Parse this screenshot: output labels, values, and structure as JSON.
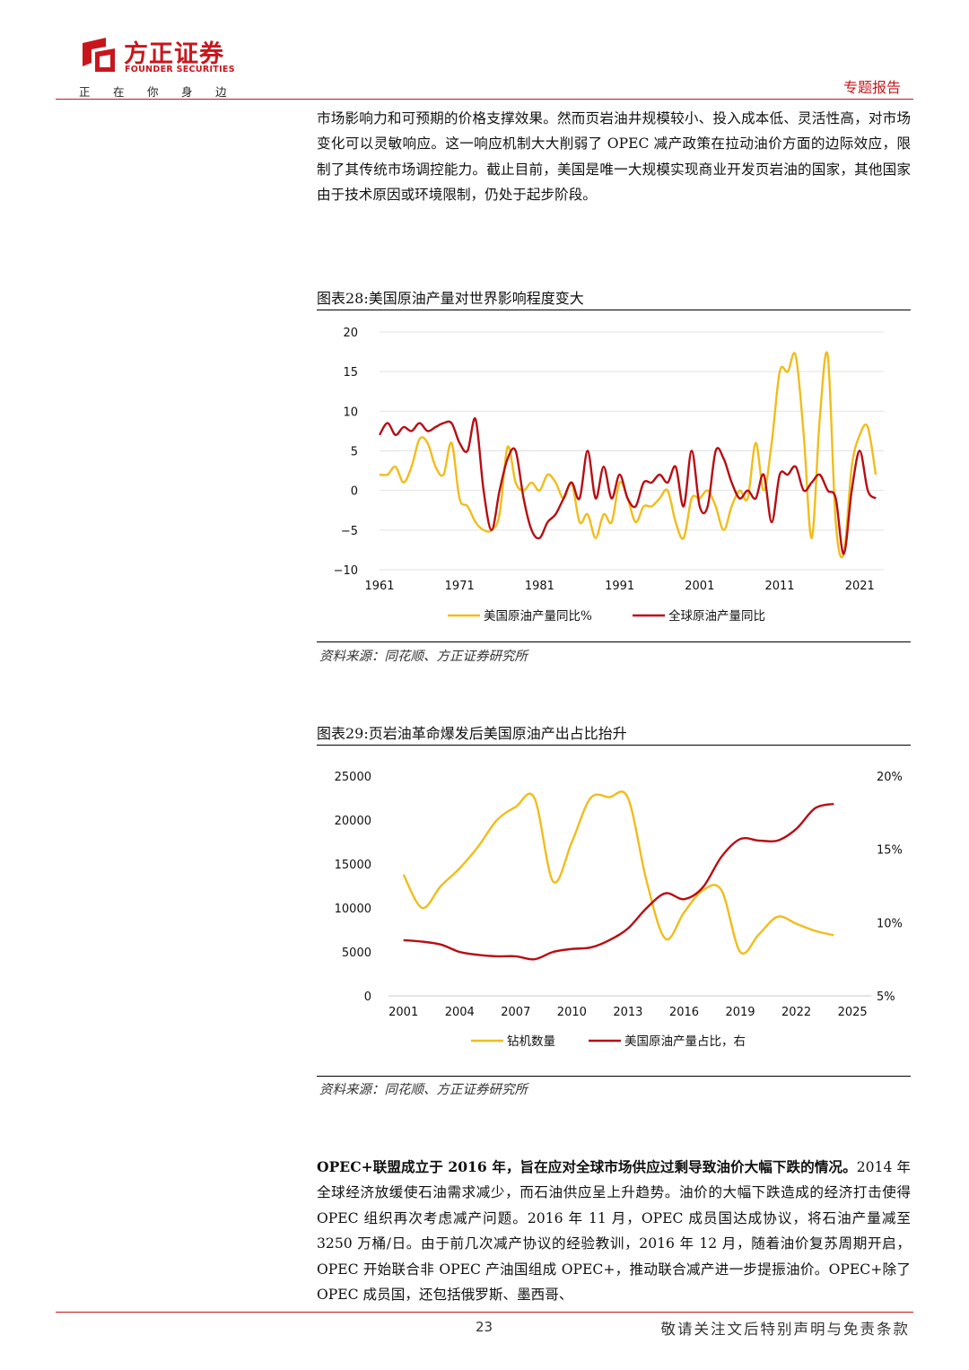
{
  "header": {
    "brand_cn": "方正证券",
    "brand_en": "FOUNDER SECURITIES",
    "slogan": [
      "正",
      "在",
      "你",
      "身",
      "边"
    ],
    "report_type": "专题报告",
    "accent_color": "#c8161d"
  },
  "intro_paragraph": "市场影响力和可预期的价格支撑效果。然而页岩油井规模较小、投入成本低、灵活性高，对市场变化可以灵敏响应。这一响应机制大大削弱了 OPEC 减产政策在拉动油价方面的边际效应，限制了其传统市场调控能力。截止目前，美国是唯一大规模实现商业开发页岩油的国家，其他国家由于技术原因或环境限制，仍处于起步阶段。",
  "figure28": {
    "title": "图表28:美国原油产量对世界影响程度变大",
    "source": "资料来源：同花顺、方正证券研究所"
  },
  "figure29": {
    "title": "图表29:页岩油革命爆发后美国原油产出占比抬升",
    "source": "资料来源：同花顺、方正证券研究所"
  },
  "chart_data": [
    {
      "type": "line",
      "title": "图表28:美国原油产量对世界影响程度变大",
      "x": [
        1961,
        1962,
        1963,
        1964,
        1965,
        1966,
        1967,
        1968,
        1969,
        1970,
        1971,
        1972,
        1973,
        1974,
        1975,
        1976,
        1977,
        1978,
        1979,
        1980,
        1981,
        1982,
        1983,
        1984,
        1985,
        1986,
        1987,
        1988,
        1989,
        1990,
        1991,
        1992,
        1993,
        1994,
        1995,
        1996,
        1997,
        1998,
        1999,
        2000,
        2001,
        2002,
        2003,
        2004,
        2005,
        2006,
        2007,
        2008,
        2009,
        2010,
        2011,
        2012,
        2013,
        2014,
        2015,
        2016,
        2017,
        2018,
        2019,
        2020,
        2021,
        2022,
        2023
      ],
      "xticks": [
        "1961",
        "1971",
        "1981",
        "1991",
        "2001",
        "2011",
        "2021"
      ],
      "yticks": [
        "20",
        "15",
        "10",
        "5",
        "0",
        "−5",
        "−10"
      ],
      "ylim": [
        -10,
        20
      ],
      "colors": {
        "us": "#f0bd1b",
        "world": "#b80d14"
      },
      "series": [
        {
          "name": "美国原油产量同比%",
          "values": [
            2,
            2,
            3,
            1,
            3,
            6.5,
            6,
            3,
            2,
            6,
            -1,
            -2,
            -4,
            -5,
            -5,
            -3,
            5.5,
            1,
            0,
            1,
            0,
            2,
            1,
            -1,
            1,
            -4,
            -3,
            -6,
            -3,
            -4,
            1,
            -1,
            -4,
            -2,
            -2,
            -1,
            0,
            -4,
            -6,
            -1,
            -1,
            0,
            -2,
            -5,
            -2,
            0,
            -1,
            6,
            0,
            6,
            15,
            15,
            17,
            7,
            -6,
            9,
            17,
            -4,
            -8,
            3,
            7,
            8,
            2
          ]
        },
        {
          "name": "全球原油产量同比",
          "values": [
            7,
            8.5,
            7,
            8,
            7.5,
            8.5,
            7.5,
            8,
            8.5,
            8.5,
            6,
            5,
            9,
            0,
            -5,
            0,
            4,
            5,
            -1,
            -5,
            -6,
            -4,
            -3,
            -1,
            1,
            -1,
            5,
            -1,
            3,
            -1,
            2,
            -1,
            -2,
            1,
            1,
            2,
            1,
            3,
            -2,
            5,
            -2,
            -2,
            5,
            4,
            1,
            -1,
            0,
            -1,
            2,
            -4,
            2,
            2,
            3,
            0,
            1,
            2,
            0,
            -1,
            -8,
            0,
            5,
            0,
            -1
          ]
        }
      ]
    },
    {
      "type": "line",
      "title": "图表29:页岩油革命爆发后美国原油产出占比抬升",
      "x": [
        2001,
        2002,
        2003,
        2004,
        2005,
        2006,
        2007,
        2008,
        2009,
        2010,
        2011,
        2012,
        2013,
        2014,
        2015,
        2016,
        2017,
        2018,
        2019,
        2020,
        2021,
        2022,
        2023,
        2024,
        2025
      ],
      "xticks": [
        "2001",
        "2004",
        "2007",
        "2010",
        "2013",
        "2016",
        "2019",
        "2022",
        "2025"
      ],
      "yticks_left": [
        "25000",
        "20000",
        "15000",
        "10000",
        "5000",
        "0"
      ],
      "yticks_right": [
        "20%",
        "15%",
        "10%",
        "5%"
      ],
      "ylim_left": [
        0,
        25000
      ],
      "ylim_right": [
        5,
        20
      ],
      "colors": {
        "rigs": "#f0bd1b",
        "share": "#b80d14"
      },
      "series": [
        {
          "name": "钻机数量",
          "axis": "left",
          "values": [
            13800,
            10000,
            12500,
            14500,
            17000,
            20000,
            21500,
            22500,
            13000,
            17500,
            22500,
            22600,
            22500,
            13000,
            6500,
            9500,
            12000,
            12000,
            5000,
            7000,
            9000,
            8200,
            7400,
            6900,
            null
          ]
        },
        {
          "name": "美国原油产量占比，右",
          "axis": "right",
          "values": [
            8.8,
            8.7,
            8.5,
            8.0,
            7.8,
            7.7,
            7.7,
            7.5,
            8.0,
            8.2,
            8.3,
            8.8,
            9.6,
            11.0,
            12.0,
            11.6,
            12.4,
            14.5,
            15.7,
            15.6,
            15.6,
            16.4,
            17.8,
            18.1,
            null
          ]
        }
      ]
    }
  ],
  "conclusion_paragraph": {
    "bold_lead": "OPEC+联盟成立于 2016 年，旨在应对全球市场供应过剩导致油价大幅下跌的情况。",
    "rest": "2014 年全球经济放缓使石油需求减少，而石油供应呈上升趋势。油价的大幅下跌造成的经济打击使得 OPEC 组织再次考虑减产问题。2016 年 11 月，OPEC 成员国达成协议，将石油产量减至3250 万桶/日。由于前几次减产协议的经验教训，2016 年 12 月，随着油价复苏周期开启，OPEC 开始联合非 OPEC 产油国组成 OPEC+，推动联合减产进一步提振油价。OPEC+除了 OPEC 成员国，还包括俄罗斯、墨西哥、"
  },
  "footer": {
    "page_number": "23",
    "disclaimer": "敬请关注文后特别声明与免责条款"
  }
}
